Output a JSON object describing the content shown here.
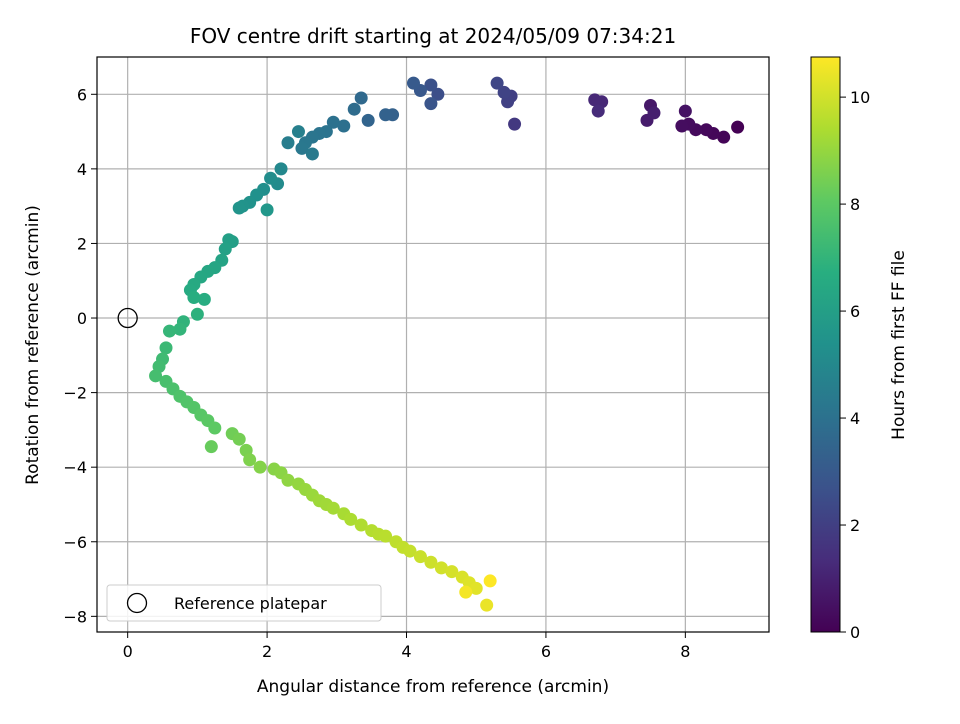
{
  "chart_data": {
    "type": "scatter",
    "title": "FOV centre drift starting at 2024/05/09 07:34:21",
    "xlabel": "Angular distance from reference (arcmin)",
    "ylabel": "Rotation from reference (arcmin)",
    "colorbar_label": "Hours from first FF file",
    "colormap": "viridis",
    "xlim": [
      -0.44,
      9.2
    ],
    "ylim": [
      -8.42,
      7.0
    ],
    "clim": [
      0,
      10.75
    ],
    "x_ticks": [
      "0",
      "2",
      "4",
      "6",
      "8"
    ],
    "y_ticks": [
      "6",
      "4",
      "2",
      "0",
      "−2",
      "−4",
      "−6",
      "−8"
    ],
    "colorbar_ticks": [
      "0",
      "2",
      "4",
      "6",
      "8",
      "10"
    ],
    "grid": true,
    "legend_position": "lower-left",
    "legend": [
      {
        "label": "Reference platepar",
        "marker": "hollow-circle",
        "x": 0,
        "y": 0
      }
    ],
    "track": [
      [
        8.75,
        5.12
      ],
      [
        8.55,
        4.85
      ],
      [
        8.4,
        4.95
      ],
      [
        8.3,
        5.05
      ],
      [
        8.15,
        5.05
      ],
      [
        8.05,
        5.2
      ],
      [
        7.95,
        5.15
      ],
      [
        8.0,
        5.55
      ],
      [
        7.5,
        5.7
      ],
      [
        7.45,
        5.3
      ],
      [
        7.55,
        5.5
      ],
      [
        6.8,
        5.8
      ],
      [
        6.7,
        5.85
      ],
      [
        6.75,
        5.55
      ],
      [
        5.55,
        5.2
      ],
      [
        5.5,
        5.95
      ],
      [
        5.45,
        5.8
      ],
      [
        5.4,
        6.05
      ],
      [
        5.3,
        6.3
      ],
      [
        4.45,
        6.0
      ],
      [
        4.35,
        6.25
      ],
      [
        4.35,
        5.75
      ],
      [
        4.2,
        6.1
      ],
      [
        4.1,
        6.3
      ],
      [
        3.8,
        5.45
      ],
      [
        3.7,
        5.45
      ],
      [
        3.45,
        5.3
      ],
      [
        3.35,
        5.9
      ],
      [
        3.25,
        5.6
      ],
      [
        3.1,
        5.15
      ],
      [
        2.95,
        5.25
      ],
      [
        2.85,
        5.0
      ],
      [
        2.75,
        4.95
      ],
      [
        2.65,
        4.85
      ],
      [
        2.55,
        4.7
      ],
      [
        2.5,
        4.55
      ],
      [
        2.65,
        4.4
      ],
      [
        2.3,
        4.7
      ],
      [
        2.45,
        5.0
      ],
      [
        2.2,
        4.0
      ],
      [
        2.15,
        3.6
      ],
      [
        2.05,
        3.75
      ],
      [
        1.95,
        3.45
      ],
      [
        1.85,
        3.3
      ],
      [
        1.75,
        3.1
      ],
      [
        1.65,
        3.0
      ],
      [
        1.6,
        2.95
      ],
      [
        2.0,
        2.9
      ],
      [
        1.5,
        2.05
      ],
      [
        1.45,
        2.1
      ],
      [
        1.4,
        1.85
      ],
      [
        1.35,
        1.55
      ],
      [
        1.25,
        1.35
      ],
      [
        1.15,
        1.25
      ],
      [
        1.05,
        1.1
      ],
      [
        0.95,
        0.9
      ],
      [
        0.9,
        0.75
      ],
      [
        1.1,
        0.5
      ],
      [
        0.95,
        0.55
      ],
      [
        1.0,
        0.1
      ],
      [
        0.8,
        -0.1
      ],
      [
        0.75,
        -0.3
      ],
      [
        0.6,
        -0.35
      ],
      [
        0.55,
        -0.8
      ],
      [
        0.5,
        -1.1
      ],
      [
        0.45,
        -1.3
      ],
      [
        0.4,
        -1.55
      ],
      [
        0.55,
        -1.7
      ],
      [
        0.65,
        -1.9
      ],
      [
        0.75,
        -2.1
      ],
      [
        0.85,
        -2.25
      ],
      [
        0.95,
        -2.4
      ],
      [
        1.05,
        -2.6
      ],
      [
        1.15,
        -2.75
      ],
      [
        1.25,
        -2.95
      ],
      [
        1.2,
        -3.45
      ],
      [
        1.5,
        -3.1
      ],
      [
        1.6,
        -3.25
      ],
      [
        1.7,
        -3.55
      ],
      [
        1.75,
        -3.8
      ],
      [
        1.9,
        -4.0
      ],
      [
        2.1,
        -4.05
      ],
      [
        2.2,
        -4.15
      ],
      [
        2.3,
        -4.35
      ],
      [
        2.45,
        -4.45
      ],
      [
        2.55,
        -4.6
      ],
      [
        2.65,
        -4.75
      ],
      [
        2.75,
        -4.9
      ],
      [
        2.85,
        -5.0
      ],
      [
        2.95,
        -5.1
      ],
      [
        3.1,
        -5.25
      ],
      [
        3.2,
        -5.4
      ],
      [
        3.35,
        -5.55
      ],
      [
        3.5,
        -5.7
      ],
      [
        3.6,
        -5.8
      ],
      [
        3.7,
        -5.85
      ],
      [
        3.85,
        -6.0
      ],
      [
        3.95,
        -6.15
      ],
      [
        4.05,
        -6.25
      ],
      [
        4.2,
        -6.4
      ],
      [
        4.35,
        -6.55
      ],
      [
        4.5,
        -6.7
      ],
      [
        4.65,
        -6.8
      ],
      [
        4.8,
        -6.95
      ],
      [
        4.9,
        -7.1
      ],
      [
        5.0,
        -7.25
      ],
      [
        5.15,
        -7.7
      ],
      [
        4.85,
        -7.35
      ],
      [
        5.2,
        -7.05
      ]
    ]
  }
}
